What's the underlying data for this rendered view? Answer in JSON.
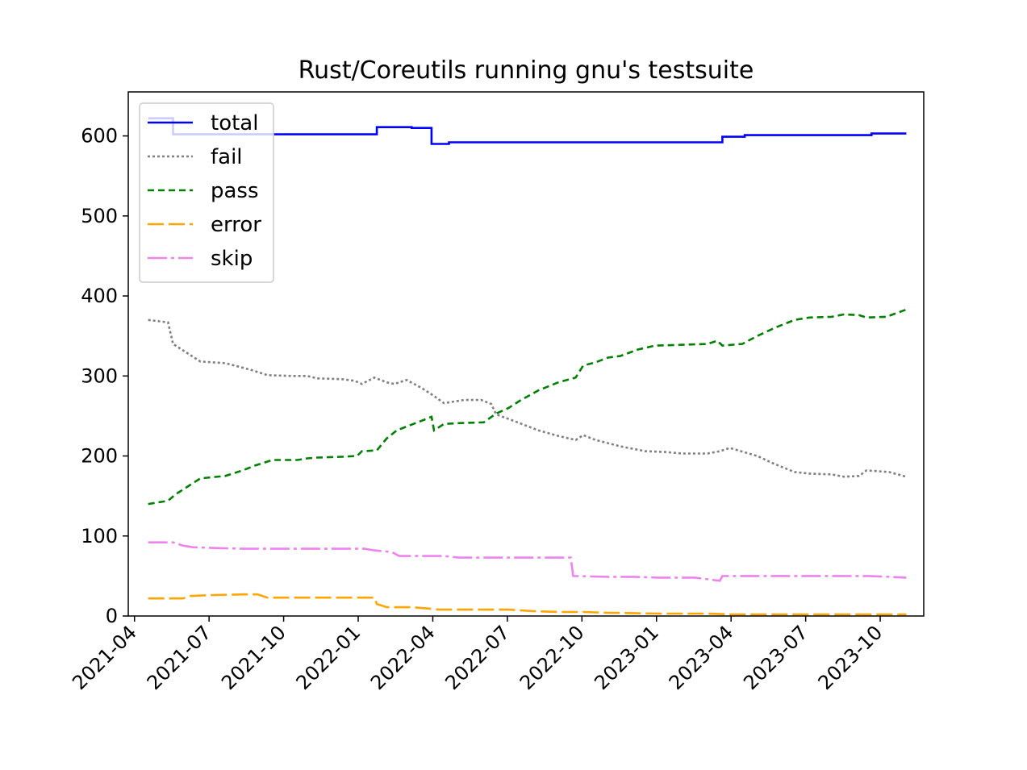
{
  "chart_data": {
    "type": "line",
    "title": "Rust/Coreutils running gnu's testsuite",
    "xlabel": "",
    "ylabel": "",
    "xlim": [
      0,
      32
    ],
    "ylim": [
      0,
      655
    ],
    "x_ticks": [
      {
        "label": "2021-04",
        "value": 0.25
      },
      {
        "label": "2021-07",
        "value": 3.25
      },
      {
        "label": "2021-10",
        "value": 6.25
      },
      {
        "label": "2022-01",
        "value": 9.25
      },
      {
        "label": "2022-04",
        "value": 12.25
      },
      {
        "label": "2022-07",
        "value": 15.25
      },
      {
        "label": "2022-10",
        "value": 18.25
      },
      {
        "label": "2023-01",
        "value": 21.25
      },
      {
        "label": "2023-04",
        "value": 24.25
      },
      {
        "label": "2023-07",
        "value": 27.25
      },
      {
        "label": "2023-10",
        "value": 30.25
      }
    ],
    "y_ticks": [
      {
        "label": "0",
        "value": 0
      },
      {
        "label": "100",
        "value": 100
      },
      {
        "label": "200",
        "value": 200
      },
      {
        "label": "300",
        "value": 300
      },
      {
        "label": "400",
        "value": 400
      },
      {
        "label": "500",
        "value": 500
      },
      {
        "label": "600",
        "value": 600
      }
    ],
    "x_unit": "months since 2021-03-28 (approx.)",
    "legend": {
      "position": "top-left"
    },
    "series": [
      {
        "name": "total",
        "color": "#0000ff",
        "dash": "",
        "step": true,
        "points": [
          [
            0.8,
            622
          ],
          [
            1.8,
            622
          ],
          [
            1.8,
            602
          ],
          [
            10.0,
            602
          ],
          [
            10.0,
            611
          ],
          [
            11.4,
            611
          ],
          [
            11.4,
            610
          ],
          [
            12.2,
            610
          ],
          [
            12.2,
            590
          ],
          [
            12.9,
            590
          ],
          [
            12.9,
            592
          ],
          [
            23.9,
            592
          ],
          [
            23.9,
            599
          ],
          [
            24.8,
            599
          ],
          [
            24.8,
            601
          ],
          [
            29.9,
            601
          ],
          [
            29.9,
            603
          ],
          [
            31.3,
            603
          ]
        ]
      },
      {
        "name": "fail",
        "color": "#808080",
        "dash": "3,3",
        "step": false,
        "points": [
          [
            0.8,
            370
          ],
          [
            1.6,
            367
          ],
          [
            1.8,
            340
          ],
          [
            2.3,
            330
          ],
          [
            2.9,
            318
          ],
          [
            3.9,
            316
          ],
          [
            4.9,
            308
          ],
          [
            5.6,
            301
          ],
          [
            6.6,
            300
          ],
          [
            7.2,
            300
          ],
          [
            7.6,
            297
          ],
          [
            8.6,
            296
          ],
          [
            9.1,
            294
          ],
          [
            9.4,
            290
          ],
          [
            9.9,
            298
          ],
          [
            10.4,
            292
          ],
          [
            10.7,
            290
          ],
          [
            11.2,
            295
          ],
          [
            11.8,
            285
          ],
          [
            12.3,
            275
          ],
          [
            12.7,
            266
          ],
          [
            13.5,
            270
          ],
          [
            14.2,
            270
          ],
          [
            14.6,
            265
          ],
          [
            14.8,
            252
          ],
          [
            15.5,
            244
          ],
          [
            16.5,
            232
          ],
          [
            17.3,
            225
          ],
          [
            18.0,
            220
          ],
          [
            18.3,
            226
          ],
          [
            18.8,
            220
          ],
          [
            19.8,
            212
          ],
          [
            20.8,
            206
          ],
          [
            21.6,
            205
          ],
          [
            22.3,
            203
          ],
          [
            23.3,
            203
          ],
          [
            23.8,
            206
          ],
          [
            24.2,
            210
          ],
          [
            25.3,
            200
          ],
          [
            26.0,
            190
          ],
          [
            26.8,
            180
          ],
          [
            27.4,
            178
          ],
          [
            28.3,
            177
          ],
          [
            28.8,
            174
          ],
          [
            29.4,
            175
          ],
          [
            29.7,
            182
          ],
          [
            30.6,
            180
          ],
          [
            31.3,
            174
          ]
        ]
      },
      {
        "name": "pass",
        "color": "#008000",
        "dash": "8,5",
        "step": false,
        "points": [
          [
            0.8,
            140
          ],
          [
            1.6,
            144
          ],
          [
            1.9,
            152
          ],
          [
            2.3,
            160
          ],
          [
            2.9,
            172
          ],
          [
            3.9,
            175
          ],
          [
            4.6,
            182
          ],
          [
            5.1,
            188
          ],
          [
            5.8,
            195
          ],
          [
            6.8,
            195
          ],
          [
            7.2,
            197
          ],
          [
            7.6,
            198
          ],
          [
            8.6,
            199
          ],
          [
            9.2,
            200
          ],
          [
            9.4,
            206
          ],
          [
            10.0,
            207
          ],
          [
            10.4,
            222
          ],
          [
            10.8,
            232
          ],
          [
            11.3,
            238
          ],
          [
            11.8,
            244
          ],
          [
            12.2,
            249
          ],
          [
            12.3,
            232
          ],
          [
            12.7,
            240
          ],
          [
            13.3,
            241
          ],
          [
            14.3,
            242
          ],
          [
            14.8,
            253
          ],
          [
            15.3,
            260
          ],
          [
            15.8,
            270
          ],
          [
            16.5,
            282
          ],
          [
            17.3,
            292
          ],
          [
            18.0,
            298
          ],
          [
            18.3,
            313
          ],
          [
            18.8,
            317
          ],
          [
            19.3,
            323
          ],
          [
            19.8,
            325
          ],
          [
            20.5,
            333
          ],
          [
            21.2,
            338
          ],
          [
            22.3,
            339
          ],
          [
            23.3,
            340
          ],
          [
            23.7,
            344
          ],
          [
            23.9,
            338
          ],
          [
            24.7,
            340
          ],
          [
            25.3,
            350
          ],
          [
            26.0,
            360
          ],
          [
            26.8,
            370
          ],
          [
            27.4,
            373
          ],
          [
            28.3,
            374
          ],
          [
            28.8,
            377
          ],
          [
            29.4,
            376
          ],
          [
            29.7,
            373
          ],
          [
            30.5,
            374
          ],
          [
            31.3,
            383
          ]
        ]
      },
      {
        "name": "error",
        "color": "#ffa500",
        "dash": "20,6",
        "step": false,
        "points": [
          [
            0.8,
            22
          ],
          [
            1.6,
            22
          ],
          [
            2.2,
            22
          ],
          [
            2.5,
            25
          ],
          [
            3.2,
            26
          ],
          [
            4.6,
            27
          ],
          [
            5.2,
            27
          ],
          [
            5.6,
            23
          ],
          [
            6.6,
            23
          ],
          [
            8.6,
            23
          ],
          [
            9.6,
            23
          ],
          [
            9.9,
            23
          ],
          [
            10.0,
            15
          ],
          [
            10.4,
            11
          ],
          [
            11.4,
            11
          ],
          [
            12.2,
            9
          ],
          [
            12.5,
            8
          ],
          [
            14.3,
            8
          ],
          [
            15.3,
            8
          ],
          [
            16.3,
            6
          ],
          [
            17.3,
            5
          ],
          [
            18.3,
            5
          ],
          [
            19.3,
            4
          ],
          [
            21.3,
            3
          ],
          [
            23.3,
            3
          ],
          [
            24.3,
            2
          ],
          [
            25.8,
            2
          ],
          [
            27.8,
            2
          ],
          [
            29.8,
            2
          ],
          [
            31.3,
            2
          ]
        ]
      },
      {
        "name": "skip",
        "color": "#ee82ee",
        "dash": "24,5,4,5",
        "step": false,
        "points": [
          [
            0.8,
            92
          ],
          [
            1.8,
            92
          ],
          [
            2.2,
            88
          ],
          [
            2.6,
            86
          ],
          [
            3.4,
            85
          ],
          [
            4.6,
            84
          ],
          [
            5.6,
            84
          ],
          [
            6.6,
            84
          ],
          [
            7.6,
            84
          ],
          [
            8.6,
            84
          ],
          [
            9.5,
            84
          ],
          [
            9.9,
            82
          ],
          [
            10.6,
            80
          ],
          [
            10.9,
            75
          ],
          [
            11.8,
            75
          ],
          [
            12.7,
            75
          ],
          [
            13.3,
            73
          ],
          [
            14.3,
            73
          ],
          [
            15.3,
            73
          ],
          [
            16.3,
            73
          ],
          [
            17.3,
            73
          ],
          [
            17.8,
            73
          ],
          [
            17.9,
            50
          ],
          [
            19.3,
            49
          ],
          [
            20.3,
            49
          ],
          [
            21.3,
            48
          ],
          [
            22.8,
            48
          ],
          [
            23.8,
            44
          ],
          [
            23.9,
            50
          ],
          [
            25.3,
            50
          ],
          [
            26.3,
            50
          ],
          [
            27.8,
            50
          ],
          [
            29.8,
            50
          ],
          [
            30.6,
            49
          ],
          [
            31.3,
            48
          ]
        ]
      }
    ]
  }
}
